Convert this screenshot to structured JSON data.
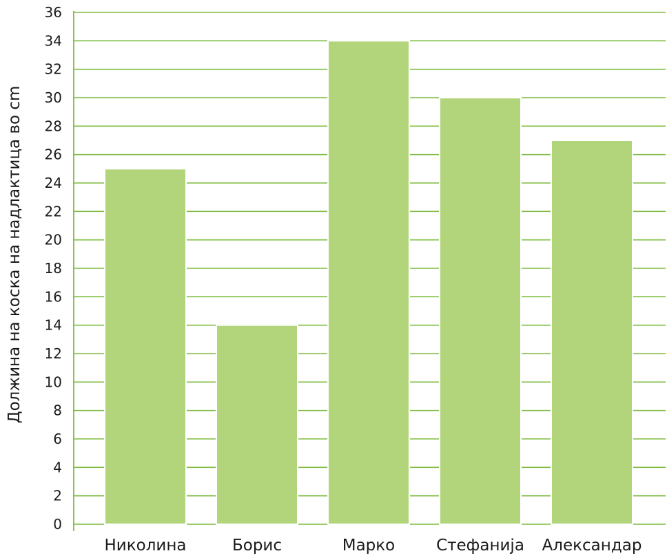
{
  "chart_data": {
    "type": "bar",
    "categories": [
      "Николина",
      "Борис",
      "Марко",
      "Стефанија",
      "Александар"
    ],
    "values": [
      25,
      14,
      34,
      30,
      27
    ],
    "title": "",
    "xlabel": "",
    "ylabel": "Должина на коска на надлактица во cm",
    "ylim": [
      0,
      36
    ],
    "yticks": [
      0,
      2,
      4,
      6,
      8,
      10,
      12,
      14,
      16,
      18,
      20,
      22,
      24,
      26,
      28,
      30,
      32,
      34,
      36
    ],
    "grid": true,
    "colors": {
      "bar": "#b2d57c",
      "grid": "#7dbb3f",
      "axis": "#7dbb3f",
      "text": "#1a1a1a"
    }
  }
}
